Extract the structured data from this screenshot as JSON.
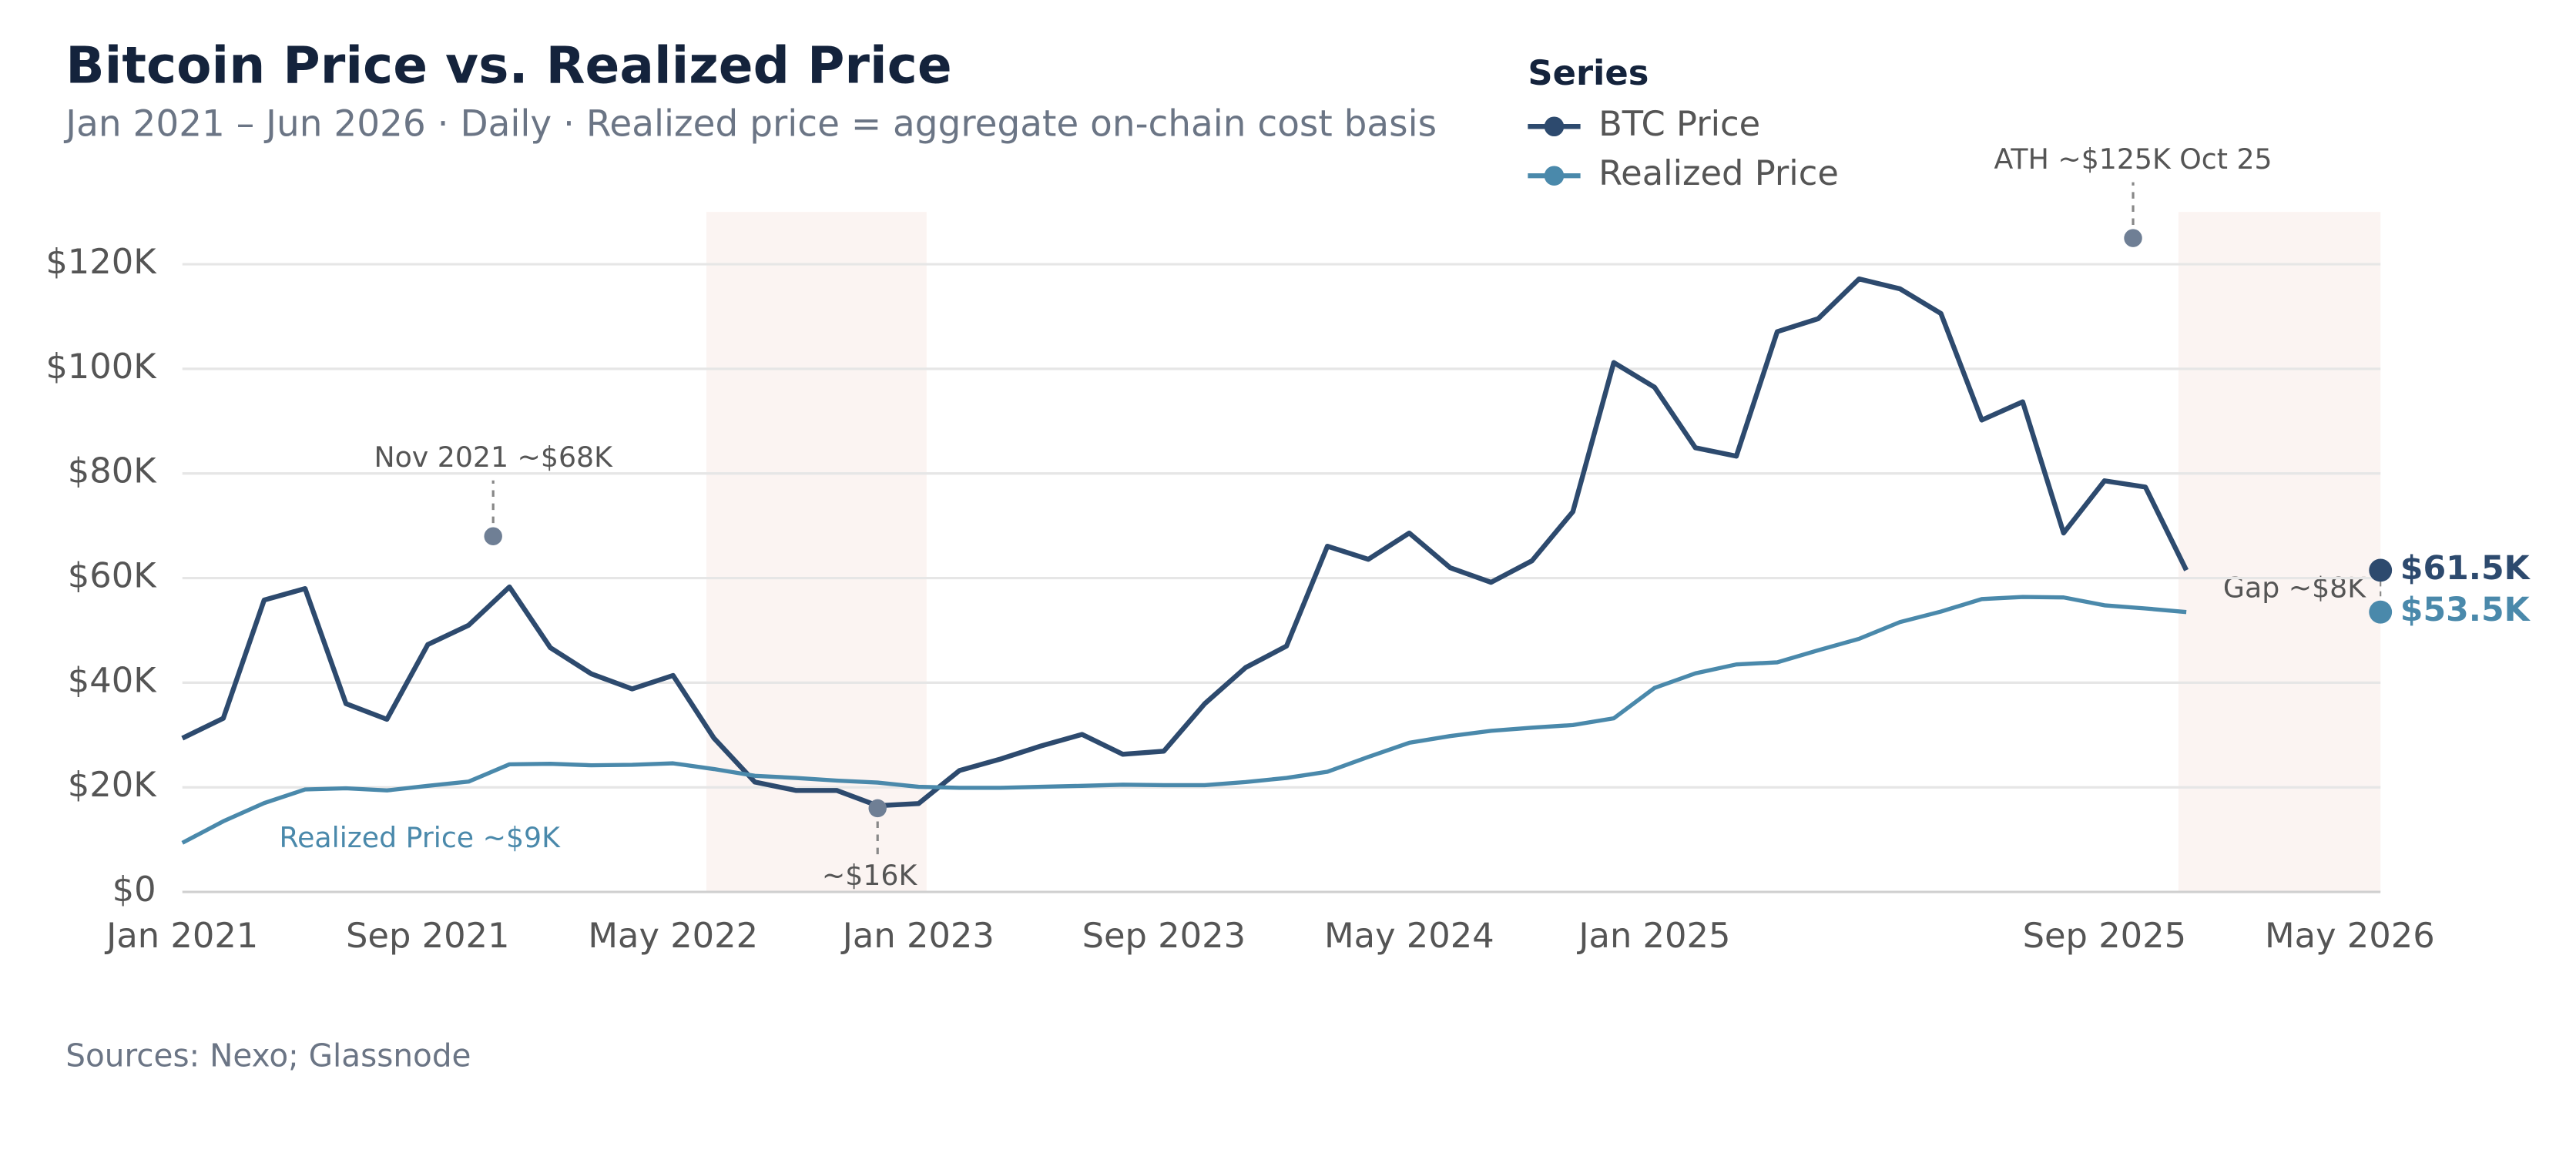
{
  "chart_data": {
    "type": "line",
    "title": "Bitcoin Price vs. Realized Price",
    "subtitle": "Jan 2021 – Jun 2026 · Daily · Realized price = aggregate on-chain cost basis",
    "legend_title": "Series",
    "source": "Sources: Nexo; Glassnode",
    "categories": [
      "Jan 2021",
      null,
      null,
      null,
      null,
      null,
      "Sep 2021",
      null,
      null,
      null,
      null,
      null,
      "May 2022",
      null,
      null,
      null,
      null,
      null,
      "Jan 2023",
      null,
      null,
      null,
      null,
      null,
      "Sep 2023",
      null,
      null,
      null,
      null,
      null,
      "May 2024",
      null,
      null,
      null,
      null,
      null,
      "Jan 2025",
      null,
      null,
      null,
      null,
      null,
      null,
      null,
      null,
      null,
      null,
      "Sep 2025",
      null,
      null,
      null,
      null,
      null,
      "May 2026"
    ],
    "series": [
      {
        "name": "BTC Price",
        "color": "#2d4a6e",
        "end_label": "$61.5K",
        "values": [
          29400,
          33200,
          55800,
          58000,
          36000,
          33000,
          47300,
          51000,
          58300,
          46700,
          41700,
          38800,
          41400,
          29400,
          21000,
          19400,
          19400,
          16500,
          16900,
          23200,
          25400,
          27900,
          30100,
          26300,
          26900,
          36000,
          42900,
          47000,
          66100,
          63600,
          68600,
          62000,
          59200,
          63300,
          72700,
          101200,
          96500,
          84900,
          83300,
          107100,
          109600,
          117200,
          115300,
          110600,
          90200,
          93700,
          68600,
          78600,
          77400,
          61500,
          null,
          null,
          null,
          null
        ]
      },
      {
        "name": "Realized Price",
        "color": "#4a89ab",
        "end_label": "$53.5K",
        "values": [
          9400,
          13500,
          17000,
          19600,
          19800,
          19400,
          20300,
          21100,
          24400,
          24500,
          24200,
          24300,
          24600,
          23500,
          22200,
          21800,
          21300,
          20900,
          20100,
          19900,
          19900,
          20100,
          20300,
          20500,
          20400,
          20400,
          21000,
          21800,
          23000,
          25800,
          28500,
          29800,
          30800,
          31400,
          31900,
          33200,
          39000,
          41800,
          43500,
          43900,
          46200,
          48400,
          51600,
          53600,
          56000,
          56400,
          56300,
          54800,
          54200,
          53500,
          null,
          null,
          null,
          null
        ]
      }
    ],
    "ylim": [
      0,
      130000
    ],
    "yticks": [
      {
        "value": 0,
        "label": "$0"
      },
      {
        "value": 20000,
        "label": "$20K"
      },
      {
        "value": 40000,
        "label": "$40K"
      },
      {
        "value": 60000,
        "label": "$60K"
      },
      {
        "value": 80000,
        "label": "$80K"
      },
      {
        "value": 100000,
        "label": "$100K"
      },
      {
        "value": 120000,
        "label": "$120K"
      }
    ],
    "grid": true,
    "annotations": [
      {
        "text": "Nov 2021 ~$68K",
        "x": 7.6,
        "y": 68000
      },
      {
        "text": "~$16K",
        "x": 17,
        "y": 16000
      },
      {
        "text": "ATH ~$125K Oct 25",
        "x": 47.7,
        "y": 125000
      }
    ],
    "labels": [
      "Realized Price ~$9K",
      "Gap ~$8K"
    ]
  }
}
